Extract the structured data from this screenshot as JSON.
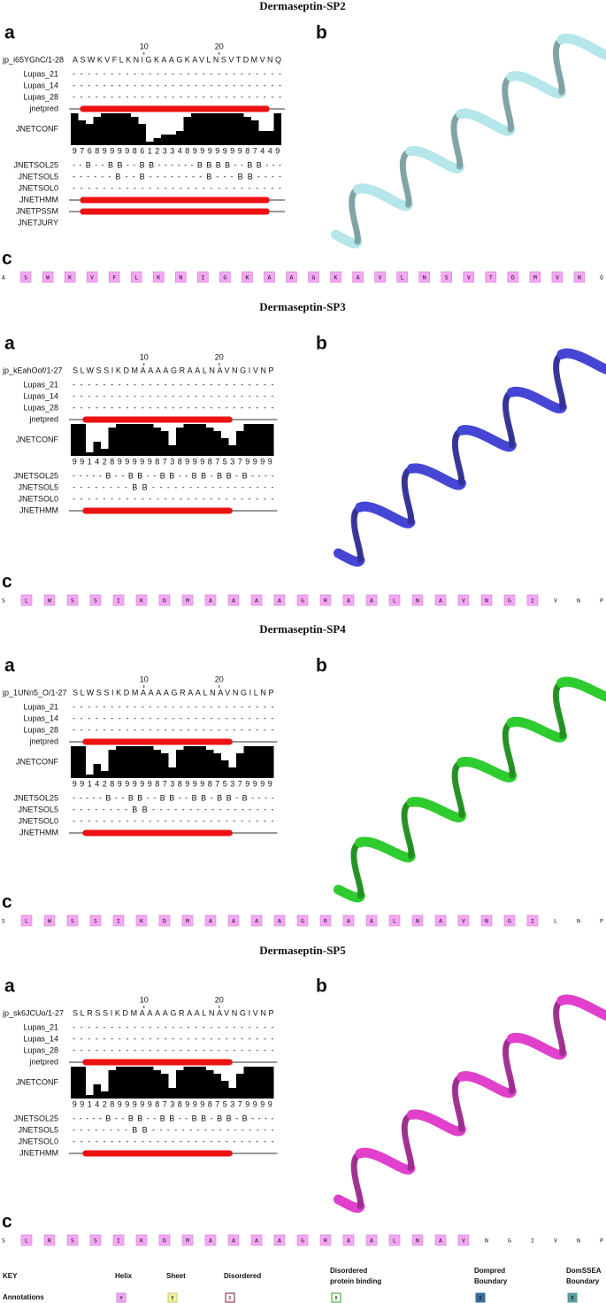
{
  "panels": [
    {
      "title": "Dermaseptin-SP2",
      "label_a": "a",
      "label_b": "b",
      "label_c": "c",
      "seq_id": "jp_i65YGhC/1-28",
      "sequence": "ASWKVFLKNIGKAAGKAVLNSVTDMVNQ",
      "ruler": [
        10,
        20
      ],
      "rows": [
        {
          "label": "Lupas_21",
          "value": "----------------------------"
        },
        {
          "label": "Lupas_14",
          "value": "----------------------------"
        },
        {
          "label": "Lupas_28",
          "value": "----------------------------"
        },
        {
          "label": "jnetpred",
          "track": true
        },
        {
          "label": "JNETCONF",
          "conf": [
            9,
            7,
            6,
            8,
            9,
            9,
            9,
            9,
            8,
            6,
            1,
            2,
            3,
            3,
            4,
            8,
            9,
            9,
            9,
            9,
            9,
            9,
            9,
            8,
            7,
            4,
            4,
            9
          ]
        },
        {
          "label": "JNETSOL25",
          "value": "--B--BB--BB------BBBB--BB---"
        },
        {
          "label": "JNETSOL5",
          "value": "------B--B--------B---BB----"
        },
        {
          "label": "JNETSOL0",
          "value": "----------------------------"
        },
        {
          "label": "JNETHMM",
          "track": true
        },
        {
          "label": "JNETPSSM",
          "track": true
        },
        {
          "label": "JNETJURY"
        }
      ],
      "structure_color": "#b4e6ea",
      "c_letters": [
        "A",
        "S",
        "W",
        "K",
        "V",
        "F",
        "L",
        "K",
        "N",
        "I",
        "G",
        "K",
        "A",
        "A",
        "G",
        "K",
        "A",
        "V",
        "L",
        "N",
        "S",
        "V",
        "T",
        "D",
        "M",
        "V",
        "N",
        "Q"
      ],
      "c_highlight": [
        false,
        true,
        true,
        true,
        true,
        true,
        true,
        true,
        true,
        true,
        true,
        true,
        true,
        true,
        true,
        true,
        true,
        true,
        true,
        true,
        true,
        true,
        true,
        true,
        true,
        true,
        true,
        false
      ]
    },
    {
      "title": "Dermaseptin-SP3",
      "label_a": "a",
      "label_b": "b",
      "label_c": "c",
      "seq_id": "jp_kEahOof/1-27",
      "sequence": "SLWSSIKDMAAAAGRAALNAVNGIVNP",
      "ruler": [
        10,
        20
      ],
      "rows": [
        {
          "label": "Lupas_21",
          "value": "---------------------------"
        },
        {
          "label": "Lupas_14",
          "value": "---------------------------"
        },
        {
          "label": "Lupas_28",
          "value": "---------------------------"
        },
        {
          "label": "jnetpred",
          "track": true
        },
        {
          "label": "JNETCONF",
          "conf": [
            9,
            9,
            1,
            4,
            2,
            8,
            9,
            9,
            9,
            9,
            9,
            8,
            7,
            3,
            8,
            9,
            9,
            9,
            8,
            7,
            5,
            3,
            7,
            9,
            9,
            9,
            9
          ]
        },
        {
          "label": "JNETSOL25",
          "value": "-----B--BB--BB--BB-BB-B----"
        },
        {
          "label": "JNETSOL5",
          "value": "--------BB-----------------"
        },
        {
          "label": "JNETSOL0",
          "value": "---------------------------"
        },
        {
          "label": "JNETHMM",
          "track": true
        }
      ],
      "structure_color": "#4646d6",
      "c_letters": [
        "S",
        "L",
        "W",
        "S",
        "S",
        "I",
        "K",
        "D",
        "M",
        "A",
        "A",
        "A",
        "A",
        "G",
        "R",
        "A",
        "A",
        "L",
        "N",
        "A",
        "V",
        "N",
        "G",
        "I",
        "V",
        "N",
        "P"
      ],
      "c_highlight": [
        false,
        true,
        true,
        true,
        true,
        true,
        true,
        true,
        true,
        true,
        true,
        true,
        true,
        true,
        true,
        true,
        true,
        true,
        true,
        true,
        true,
        true,
        true,
        true,
        false,
        false,
        false
      ]
    },
    {
      "title": "Dermaseptin-SP4",
      "label_a": "a",
      "label_b": "b",
      "label_c": "c",
      "seq_id": "jp_1UNn5_O/1-27",
      "sequence": "SLWSSIKDMAAAAGRAALNAVNGILNP",
      "ruler": [
        10,
        20
      ],
      "rows": [
        {
          "label": "Lupas_21",
          "value": "---------------------------"
        },
        {
          "label": "Lupas_14",
          "value": "---------------------------"
        },
        {
          "label": "Lupas_28",
          "value": "---------------------------"
        },
        {
          "label": "jnetpred",
          "track": true
        },
        {
          "label": "JNETCONF",
          "conf": [
            9,
            9,
            1,
            4,
            2,
            8,
            9,
            9,
            9,
            9,
            9,
            8,
            7,
            3,
            8,
            9,
            9,
            9,
            8,
            7,
            5,
            3,
            7,
            9,
            9,
            9,
            9
          ]
        },
        {
          "label": "JNETSOL25",
          "value": "-----B--BB--BB--BB-BB-B----"
        },
        {
          "label": "JNETSOL5",
          "value": "--------BB-----------------"
        },
        {
          "label": "JNETSOL0",
          "value": "---------------------------"
        },
        {
          "label": "JNETHMM",
          "track": true
        }
      ],
      "structure_color": "#2ecc2e",
      "c_letters": [
        "S",
        "L",
        "W",
        "S",
        "S",
        "I",
        "K",
        "D",
        "M",
        "A",
        "A",
        "A",
        "A",
        "G",
        "R",
        "A",
        "A",
        "L",
        "N",
        "A",
        "V",
        "N",
        "G",
        "I",
        "L",
        "N",
        "P"
      ],
      "c_highlight": [
        false,
        true,
        true,
        true,
        true,
        true,
        true,
        true,
        true,
        true,
        true,
        true,
        true,
        true,
        true,
        true,
        true,
        true,
        true,
        true,
        true,
        true,
        true,
        true,
        false,
        false,
        false
      ]
    },
    {
      "title": "Dermaseptin-SP5",
      "label_a": "a",
      "label_b": "b",
      "label_c": "c",
      "seq_id": "jp_sk6JCUo/1-27",
      "sequence": "SLRSSIKDMAAAAGRAALNAVNGIVNP",
      "ruler": [
        10,
        20
      ],
      "rows": [
        {
          "label": "Lupas_21",
          "value": "---------------------------"
        },
        {
          "label": "Lupas_14",
          "value": "---------------------------"
        },
        {
          "label": "Lupas_28",
          "value": "---------------------------"
        },
        {
          "label": "jnetpred",
          "track": true
        },
        {
          "label": "JNETCONF",
          "conf": [
            9,
            9,
            1,
            4,
            2,
            8,
            9,
            9,
            9,
            9,
            9,
            8,
            7,
            3,
            8,
            9,
            9,
            9,
            8,
            7,
            5,
            3,
            7,
            9,
            9,
            9,
            9
          ]
        },
        {
          "label": "JNETSOL25",
          "value": "-----B--BB--BB--BB-BB-B----"
        },
        {
          "label": "JNETSOL5",
          "value": "--------BB-----------------"
        },
        {
          "label": "JNETSOL0",
          "value": "---------------------------"
        },
        {
          "label": "JNETHMM",
          "track": true
        }
      ],
      "structure_color": "#e040cc",
      "c_letters": [
        "S",
        "L",
        "R",
        "S",
        "S",
        "I",
        "K",
        "D",
        "M",
        "A",
        "A",
        "A",
        "A",
        "G",
        "R",
        "A",
        "A",
        "L",
        "N",
        "A",
        "V",
        "N",
        "G",
        "I",
        "V",
        "N",
        "P"
      ],
      "c_highlight": [
        false,
        true,
        true,
        true,
        true,
        true,
        true,
        true,
        true,
        true,
        true,
        true,
        true,
        true,
        true,
        true,
        true,
        true,
        true,
        true,
        true,
        false,
        false,
        false,
        false,
        false,
        false
      ]
    }
  ],
  "key": {
    "title": "KEY",
    "row_label": "Annotations",
    "columns": [
      {
        "name": [
          "Helix"
        ],
        "symbol": "H",
        "fill": "#f4a8f4",
        "stroke": "#d080d0"
      },
      {
        "name": [
          "Sheet"
        ],
        "symbol": "E",
        "fill": "#f0f0a0",
        "stroke": "#c8c870"
      },
      {
        "name": [
          "Disordered"
        ],
        "symbol": "D",
        "fill": "#ffffff",
        "stroke": "#8a1030"
      },
      {
        "name": [
          "Disordered",
          "protein binding"
        ],
        "symbol": "B",
        "fill": "#ffffff",
        "stroke": "#20a020"
      },
      {
        "name": [
          "Dompred",
          "Boundary"
        ],
        "symbol": "B",
        "fill": "#3a6a9a",
        "stroke": "#3a6a9a"
      },
      {
        "name": [
          "DomSSEA",
          "Boundary"
        ],
        "symbol": "B",
        "fill": "#5a9a98",
        "stroke": "#5a9a98"
      }
    ]
  }
}
